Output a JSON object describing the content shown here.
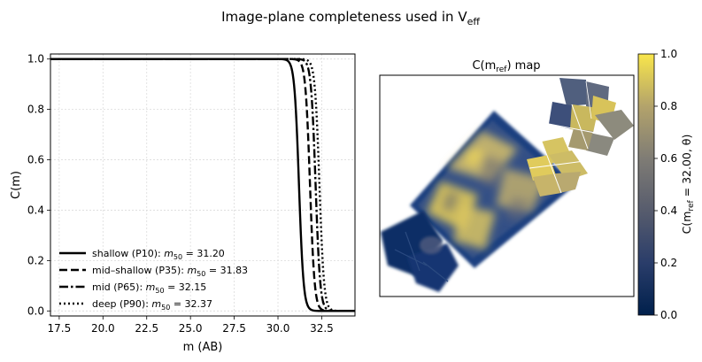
{
  "figure": {
    "suptitle_main": "Image-plane completeness used in V",
    "suptitle_sub": "eff"
  },
  "chart_data": [
    {
      "type": "line",
      "title": "",
      "xlabel": "m (AB)",
      "ylabel": "C(m)",
      "xlim": [
        17.0,
        34.4
      ],
      "ylim": [
        -0.02,
        1.02
      ],
      "xticks": [
        17.5,
        20.0,
        22.5,
        25.0,
        27.5,
        30.0,
        32.5
      ],
      "xtick_labels": [
        "17.5",
        "20.0",
        "22.5",
        "25.0",
        "27.5",
        "30.0",
        "32.5"
      ],
      "yticks": [
        0.0,
        0.2,
        0.4,
        0.6,
        0.8,
        1.0
      ],
      "ytick_labels": [
        "0.0",
        "0.2",
        "0.4",
        "0.6",
        "0.8",
        "1.0"
      ],
      "grid": true,
      "legend_location": "lower-left",
      "curve_model": "logistic step C(m) = 1 / (1 + exp((m - m50) / w))",
      "series": [
        {
          "name": "shallow (P10)",
          "legend_prefix": "shallow (P10): ",
          "legend_value": "= 31.20",
          "m50": 31.2,
          "width": 0.13,
          "style": "solid"
        },
        {
          "name": "mid-shallow (P35)",
          "legend_prefix": "mid–shallow (P35): ",
          "legend_value": "= 31.83",
          "m50": 31.83,
          "width": 0.13,
          "style": "dashed"
        },
        {
          "name": "mid (P65)",
          "legend_prefix": "mid (P65): ",
          "legend_value": "= 32.15",
          "m50": 32.15,
          "width": 0.13,
          "style": "dashdot"
        },
        {
          "name": "deep (P90)",
          "legend_prefix": "deep (P90): ",
          "legend_value": "= 32.37",
          "m50": 32.37,
          "width": 0.13,
          "style": "dotted"
        }
      ]
    },
    {
      "type": "heatmap",
      "title_prefix": "C(m",
      "title_sub": "ref",
      "title_suffix": ") map",
      "colormap": "cividis",
      "colorbar": {
        "range": [
          0.0,
          1.0
        ],
        "ticks": [
          0.0,
          0.2,
          0.4,
          0.6,
          0.8,
          1.0
        ],
        "tick_labels": [
          "0.0",
          "0.2",
          "0.4",
          "0.6",
          "0.8",
          "1.0"
        ],
        "label_prefix": "C(m",
        "label_sub": "ref",
        "label_suffix": " = 32.00, θ)"
      },
      "colors": {
        "low": "#00204c",
        "mid": "#7b7b78",
        "high": "#f9e64b"
      }
    }
  ]
}
